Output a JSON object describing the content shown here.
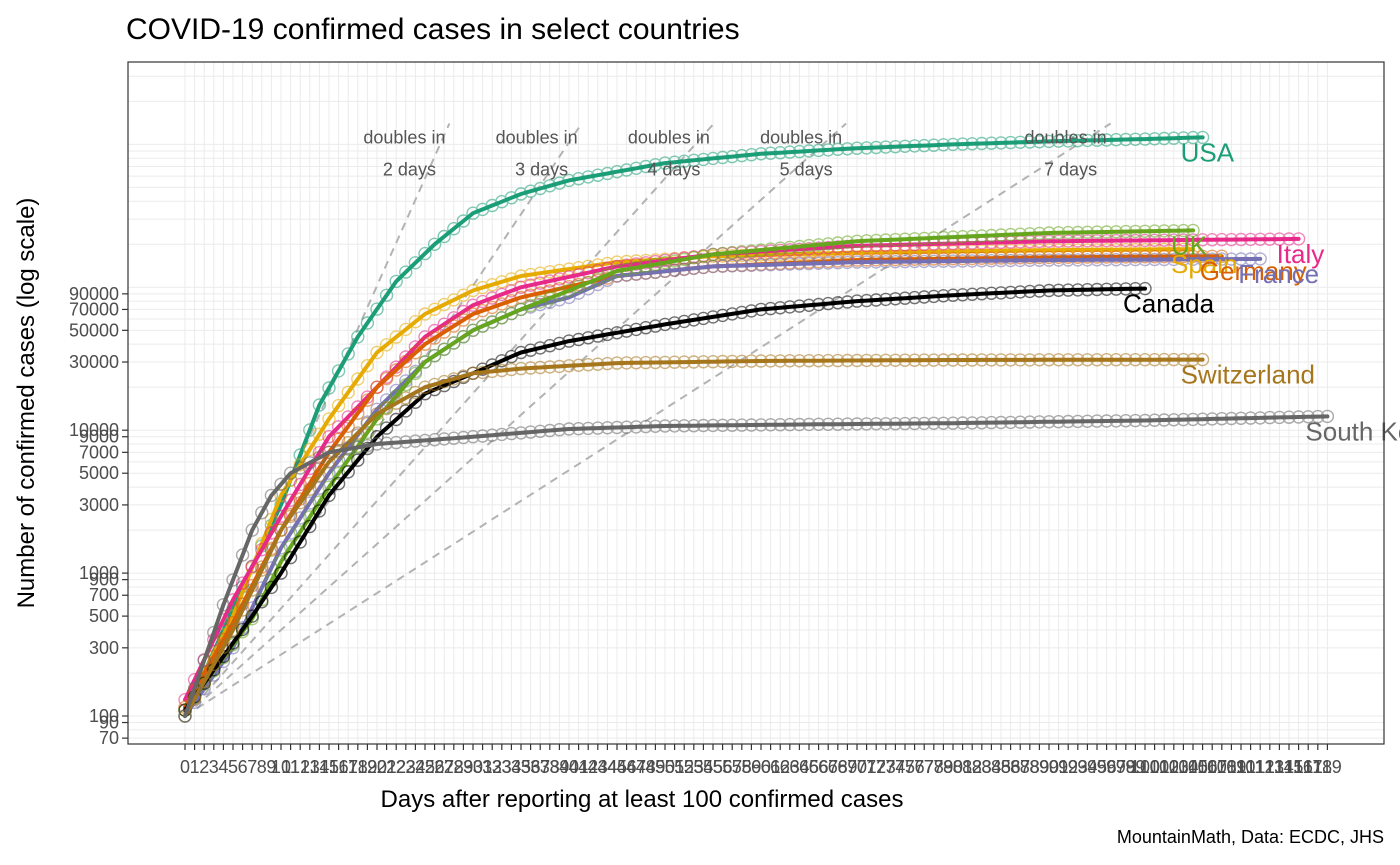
{
  "chart_data": {
    "type": "line",
    "title": "COVID-19 confirmed cases in select countries",
    "xlabel": "Days after reporting at least 100 confirmed cases",
    "ylabel": "Number of confirmed cases (log scale)",
    "caption": "MountainMath, Data: ECDC, JHS",
    "y_scale": "log",
    "xlim": [
      0,
      119
    ],
    "ylim": [
      70,
      1500000
    ],
    "grid": true,
    "y_ticks": [
      70,
      90,
      100,
      300,
      500,
      700,
      900,
      1000,
      3000,
      5000,
      7000,
      9000,
      10000,
      30000,
      50000,
      70000,
      90000
    ],
    "y_tick_labels": [
      "70",
      "90",
      "100",
      "300",
      "500",
      "700",
      "900",
      "1000",
      "3000",
      "5000",
      "7000",
      "9000",
      "10000",
      "30000",
      "50000",
      "70000",
      "90000"
    ],
    "x_ticks_start": 0,
    "x_ticks_end": 119,
    "series": [
      {
        "name": "USA",
        "color": "#1b9e77",
        "days": 106,
        "anchors": [
          [
            0,
            100
          ],
          [
            6,
            800
          ],
          [
            10,
            3000
          ],
          [
            14,
            15000
          ],
          [
            18,
            45000
          ],
          [
            22,
            110000
          ],
          [
            26,
            200000
          ],
          [
            30,
            330000
          ],
          [
            35,
            450000
          ],
          [
            40,
            560000
          ],
          [
            50,
            740000
          ],
          [
            60,
            860000
          ],
          [
            70,
            940000
          ],
          [
            80,
            1000000
          ],
          [
            90,
            1050000
          ],
          [
            100,
            1090000
          ],
          [
            106,
            1120000
          ]
        ]
      },
      {
        "name": "Spain",
        "color": "#e6ab02",
        "days": 105,
        "anchors": [
          [
            0,
            110
          ],
          [
            5,
            500
          ],
          [
            10,
            3500
          ],
          [
            15,
            12000
          ],
          [
            20,
            35000
          ],
          [
            25,
            65000
          ],
          [
            30,
            95000
          ],
          [
            35,
            120000
          ],
          [
            45,
            150000
          ],
          [
            55,
            165000
          ],
          [
            70,
            175000
          ],
          [
            90,
            182000
          ],
          [
            105,
            185000
          ]
        ]
      },
      {
        "name": "Italy",
        "color": "#e7298a",
        "days": 116,
        "anchors": [
          [
            0,
            130
          ],
          [
            5,
            650
          ],
          [
            10,
            2500
          ],
          [
            15,
            9000
          ],
          [
            20,
            20000
          ],
          [
            25,
            45000
          ],
          [
            30,
            75000
          ],
          [
            35,
            100000
          ],
          [
            45,
            140000
          ],
          [
            55,
            170000
          ],
          [
            70,
            195000
          ],
          [
            90,
            210000
          ],
          [
            116,
            218000
          ]
        ]
      },
      {
        "name": "Germany",
        "color": "#d95f02",
        "days": 108,
        "anchors": [
          [
            0,
            115
          ],
          [
            5,
            450
          ],
          [
            10,
            2000
          ],
          [
            15,
            7000
          ],
          [
            20,
            20000
          ],
          [
            25,
            40000
          ],
          [
            30,
            65000
          ],
          [
            35,
            85000
          ],
          [
            45,
            120000
          ],
          [
            55,
            140000
          ],
          [
            70,
            155000
          ],
          [
            90,
            162000
          ],
          [
            108,
            165000
          ]
        ]
      },
      {
        "name": "France",
        "color": "#7570b3",
        "days": 112,
        "anchors": [
          [
            0,
            100
          ],
          [
            5,
            300
          ],
          [
            10,
            1500
          ],
          [
            15,
            5000
          ],
          [
            20,
            14000
          ],
          [
            25,
            30000
          ],
          [
            30,
            50000
          ],
          [
            35,
            70000
          ],
          [
            40,
            85000
          ],
          [
            45,
            120000
          ],
          [
            55,
            140000
          ],
          [
            70,
            150000
          ],
          [
            90,
            155000
          ],
          [
            112,
            158000
          ]
        ]
      },
      {
        "name": "UK",
        "color": "#66a61e",
        "days": 105,
        "anchors": [
          [
            0,
            110
          ],
          [
            7,
            480
          ],
          [
            10,
            1200
          ],
          [
            15,
            4000
          ],
          [
            20,
            12000
          ],
          [
            25,
            30000
          ],
          [
            30,
            50000
          ],
          [
            35,
            70000
          ],
          [
            40,
            95000
          ],
          [
            45,
            130000
          ],
          [
            55,
            170000
          ],
          [
            70,
            210000
          ],
          [
            90,
            240000
          ],
          [
            105,
            250000
          ]
        ]
      },
      {
        "name": "Canada",
        "color": "#000000",
        "days": 100,
        "anchors": [
          [
            0,
            110
          ],
          [
            7,
            500
          ],
          [
            10,
            1000
          ],
          [
            15,
            3500
          ],
          [
            20,
            9000
          ],
          [
            25,
            18000
          ],
          [
            30,
            25000
          ],
          [
            35,
            35000
          ],
          [
            40,
            42000
          ],
          [
            50,
            55000
          ],
          [
            60,
            70000
          ],
          [
            70,
            80000
          ],
          [
            80,
            88000
          ],
          [
            90,
            95000
          ],
          [
            100,
            98000
          ]
        ]
      },
      {
        "name": "Switzerland",
        "color": "#a6761d",
        "days": 106,
        "anchors": [
          [
            0,
            100
          ],
          [
            5,
            400
          ],
          [
            10,
            2000
          ],
          [
            15,
            6000
          ],
          [
            20,
            13000
          ],
          [
            25,
            20000
          ],
          [
            30,
            25000
          ],
          [
            35,
            27000
          ],
          [
            45,
            29500
          ],
          [
            60,
            30500
          ],
          [
            80,
            31000
          ],
          [
            106,
            31200
          ]
        ]
      },
      {
        "name": "South Korea",
        "color": "#666666",
        "days": 119,
        "anchors": [
          [
            0,
            100
          ],
          [
            4,
            600
          ],
          [
            7,
            2000
          ],
          [
            9,
            3500
          ],
          [
            11,
            5000
          ],
          [
            15,
            7000
          ],
          [
            20,
            8000
          ],
          [
            30,
            9000
          ],
          [
            40,
            10200
          ],
          [
            50,
            10700
          ],
          [
            60,
            10900
          ],
          [
            80,
            11200
          ],
          [
            100,
            11700
          ],
          [
            119,
            12500
          ]
        ]
      }
    ],
    "reference_lines": [
      {
        "label_line1": "doubles in",
        "label_line2": "2 days",
        "doubling_days": 2
      },
      {
        "label_line1": "doubles in",
        "label_line2": "3 days",
        "doubling_days": 3
      },
      {
        "label_line1": "doubles in",
        "label_line2": "4 days",
        "doubling_days": 4
      },
      {
        "label_line1": "doubles in",
        "label_line2": "5 days",
        "doubling_days": 5
      },
      {
        "label_line1": "doubles in",
        "label_line2": "7 days",
        "doubling_days": 7
      }
    ]
  }
}
